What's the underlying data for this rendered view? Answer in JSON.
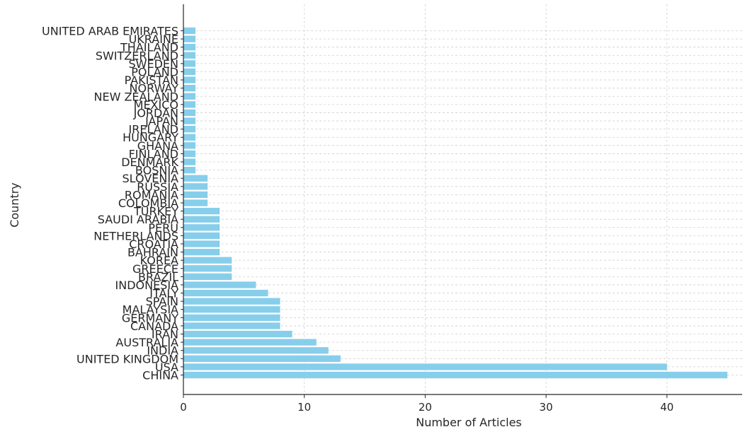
{
  "chart_data": {
    "type": "bar",
    "orientation": "horizontal",
    "xlabel": "Number of Articles",
    "ylabel": "Country",
    "xlim": [
      0,
      46
    ],
    "xticks": [
      0,
      10,
      20,
      30,
      40
    ],
    "grid": true,
    "bar_color": "#87ceeb",
    "categories": [
      "CHINA",
      "USA",
      "UNITED KINGDOM",
      "INDIA",
      "AUSTRALIA",
      "IRAN",
      "CANADA",
      "GERMANY",
      "MALAYSIA",
      "SPAIN",
      "ITALY",
      "INDONESIA",
      "BRAZIL",
      "GREECE",
      "KOREA",
      "BAHRAIN",
      "CROATIA",
      "NETHERLANDS",
      "PERU",
      "SAUDI ARABIA",
      "TURKEY",
      "COLOMBIA",
      "ROMANIA",
      "RUSSIA",
      "SLOVENIA",
      "BOSNIA",
      "DENMARK",
      "FINLAND",
      "GHANA",
      "HUNGARY",
      "IRELAND",
      "JAPAN",
      "JORDAN",
      "MEXICO",
      "NEW ZEALAND",
      "NORWAY",
      "PAKISTAN",
      "POLAND",
      "SWEDEN",
      "SWITZERLAND",
      "THAILAND",
      "UKRAINE",
      "UNITED ARAB EMIRATES"
    ],
    "values": [
      45,
      40,
      13,
      12,
      11,
      9,
      8,
      8,
      8,
      8,
      7,
      6,
      4,
      4,
      4,
      3,
      3,
      3,
      3,
      3,
      3,
      2,
      2,
      2,
      2,
      1,
      1,
      1,
      1,
      1,
      1,
      1,
      1,
      1,
      1,
      1,
      1,
      1,
      1,
      1,
      1,
      1,
      1
    ]
  }
}
